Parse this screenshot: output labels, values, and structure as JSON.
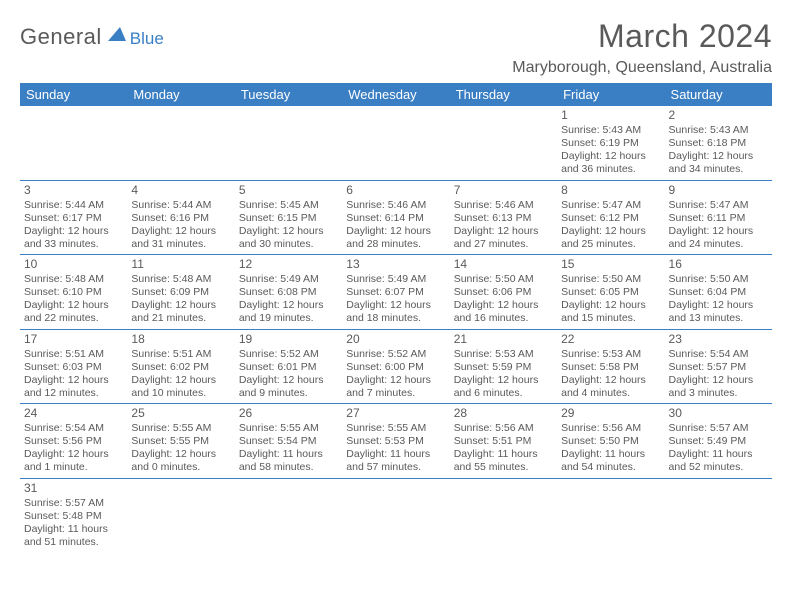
{
  "logo": {
    "text1": "General",
    "text2": "Blue"
  },
  "title": "March 2024",
  "location": "Maryborough, Queensland, Australia",
  "colors": {
    "header_bg": "#3a7fc4",
    "text": "#5a5a5a",
    "rule": "#3a7fc4"
  },
  "weekdays": [
    "Sunday",
    "Monday",
    "Tuesday",
    "Wednesday",
    "Thursday",
    "Friday",
    "Saturday"
  ],
  "weeks": [
    [
      null,
      null,
      null,
      null,
      null,
      {
        "n": "1",
        "sr": "Sunrise: 5:43 AM",
        "ss": "Sunset: 6:19 PM",
        "dl": "Daylight: 12 hours and 36 minutes."
      },
      {
        "n": "2",
        "sr": "Sunrise: 5:43 AM",
        "ss": "Sunset: 6:18 PM",
        "dl": "Daylight: 12 hours and 34 minutes."
      }
    ],
    [
      {
        "n": "3",
        "sr": "Sunrise: 5:44 AM",
        "ss": "Sunset: 6:17 PM",
        "dl": "Daylight: 12 hours and 33 minutes."
      },
      {
        "n": "4",
        "sr": "Sunrise: 5:44 AM",
        "ss": "Sunset: 6:16 PM",
        "dl": "Daylight: 12 hours and 31 minutes."
      },
      {
        "n": "5",
        "sr": "Sunrise: 5:45 AM",
        "ss": "Sunset: 6:15 PM",
        "dl": "Daylight: 12 hours and 30 minutes."
      },
      {
        "n": "6",
        "sr": "Sunrise: 5:46 AM",
        "ss": "Sunset: 6:14 PM",
        "dl": "Daylight: 12 hours and 28 minutes."
      },
      {
        "n": "7",
        "sr": "Sunrise: 5:46 AM",
        "ss": "Sunset: 6:13 PM",
        "dl": "Daylight: 12 hours and 27 minutes."
      },
      {
        "n": "8",
        "sr": "Sunrise: 5:47 AM",
        "ss": "Sunset: 6:12 PM",
        "dl": "Daylight: 12 hours and 25 minutes."
      },
      {
        "n": "9",
        "sr": "Sunrise: 5:47 AM",
        "ss": "Sunset: 6:11 PM",
        "dl": "Daylight: 12 hours and 24 minutes."
      }
    ],
    [
      {
        "n": "10",
        "sr": "Sunrise: 5:48 AM",
        "ss": "Sunset: 6:10 PM",
        "dl": "Daylight: 12 hours and 22 minutes."
      },
      {
        "n": "11",
        "sr": "Sunrise: 5:48 AM",
        "ss": "Sunset: 6:09 PM",
        "dl": "Daylight: 12 hours and 21 minutes."
      },
      {
        "n": "12",
        "sr": "Sunrise: 5:49 AM",
        "ss": "Sunset: 6:08 PM",
        "dl": "Daylight: 12 hours and 19 minutes."
      },
      {
        "n": "13",
        "sr": "Sunrise: 5:49 AM",
        "ss": "Sunset: 6:07 PM",
        "dl": "Daylight: 12 hours and 18 minutes."
      },
      {
        "n": "14",
        "sr": "Sunrise: 5:50 AM",
        "ss": "Sunset: 6:06 PM",
        "dl": "Daylight: 12 hours and 16 minutes."
      },
      {
        "n": "15",
        "sr": "Sunrise: 5:50 AM",
        "ss": "Sunset: 6:05 PM",
        "dl": "Daylight: 12 hours and 15 minutes."
      },
      {
        "n": "16",
        "sr": "Sunrise: 5:50 AM",
        "ss": "Sunset: 6:04 PM",
        "dl": "Daylight: 12 hours and 13 minutes."
      }
    ],
    [
      {
        "n": "17",
        "sr": "Sunrise: 5:51 AM",
        "ss": "Sunset: 6:03 PM",
        "dl": "Daylight: 12 hours and 12 minutes."
      },
      {
        "n": "18",
        "sr": "Sunrise: 5:51 AM",
        "ss": "Sunset: 6:02 PM",
        "dl": "Daylight: 12 hours and 10 minutes."
      },
      {
        "n": "19",
        "sr": "Sunrise: 5:52 AM",
        "ss": "Sunset: 6:01 PM",
        "dl": "Daylight: 12 hours and 9 minutes."
      },
      {
        "n": "20",
        "sr": "Sunrise: 5:52 AM",
        "ss": "Sunset: 6:00 PM",
        "dl": "Daylight: 12 hours and 7 minutes."
      },
      {
        "n": "21",
        "sr": "Sunrise: 5:53 AM",
        "ss": "Sunset: 5:59 PM",
        "dl": "Daylight: 12 hours and 6 minutes."
      },
      {
        "n": "22",
        "sr": "Sunrise: 5:53 AM",
        "ss": "Sunset: 5:58 PM",
        "dl": "Daylight: 12 hours and 4 minutes."
      },
      {
        "n": "23",
        "sr": "Sunrise: 5:54 AM",
        "ss": "Sunset: 5:57 PM",
        "dl": "Daylight: 12 hours and 3 minutes."
      }
    ],
    [
      {
        "n": "24",
        "sr": "Sunrise: 5:54 AM",
        "ss": "Sunset: 5:56 PM",
        "dl": "Daylight: 12 hours and 1 minute."
      },
      {
        "n": "25",
        "sr": "Sunrise: 5:55 AM",
        "ss": "Sunset: 5:55 PM",
        "dl": "Daylight: 12 hours and 0 minutes."
      },
      {
        "n": "26",
        "sr": "Sunrise: 5:55 AM",
        "ss": "Sunset: 5:54 PM",
        "dl": "Daylight: 11 hours and 58 minutes."
      },
      {
        "n": "27",
        "sr": "Sunrise: 5:55 AM",
        "ss": "Sunset: 5:53 PM",
        "dl": "Daylight: 11 hours and 57 minutes."
      },
      {
        "n": "28",
        "sr": "Sunrise: 5:56 AM",
        "ss": "Sunset: 5:51 PM",
        "dl": "Daylight: 11 hours and 55 minutes."
      },
      {
        "n": "29",
        "sr": "Sunrise: 5:56 AM",
        "ss": "Sunset: 5:50 PM",
        "dl": "Daylight: 11 hours and 54 minutes."
      },
      {
        "n": "30",
        "sr": "Sunrise: 5:57 AM",
        "ss": "Sunset: 5:49 PM",
        "dl": "Daylight: 11 hours and 52 minutes."
      }
    ],
    [
      {
        "n": "31",
        "sr": "Sunrise: 5:57 AM",
        "ss": "Sunset: 5:48 PM",
        "dl": "Daylight: 11 hours and 51 minutes."
      },
      null,
      null,
      null,
      null,
      null,
      null
    ]
  ]
}
